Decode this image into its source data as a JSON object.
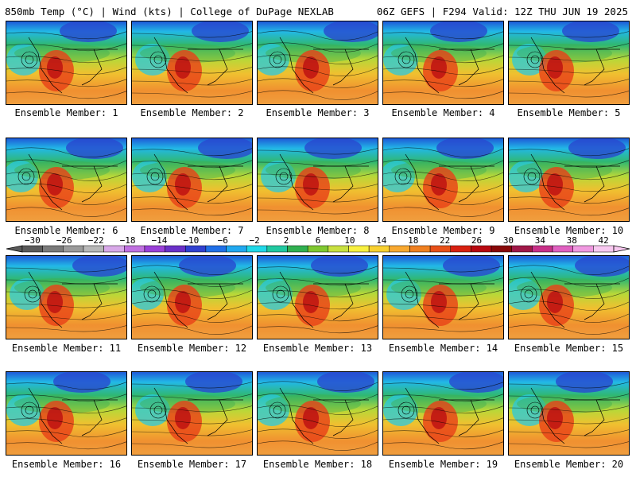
{
  "header": {
    "left": "850mb Temp (°C) | Wind (kts) | College of DuPage NEXLAB",
    "right": "06Z GEFS | F294 Valid: 12Z THU JUN 19 2025"
  },
  "member_label_prefix": "Ensemble Member: ",
  "members": [
    1,
    2,
    3,
    4,
    5,
    6,
    7,
    8,
    9,
    10,
    11,
    12,
    13,
    14,
    15,
    16,
    17,
    18,
    19,
    20
  ],
  "colorbar": {
    "tick_labels": [
      "−30",
      "−26",
      "−22",
      "−18",
      "−14",
      "−10",
      "−6",
      "−2",
      "2",
      "6",
      "10",
      "14",
      "18",
      "22",
      "26",
      "30",
      "34",
      "38",
      "42"
    ],
    "colors": [
      "#5a5a5a",
      "#7a7a7a",
      "#9a9a9a",
      "#b8b8b8",
      "#d8a8e8",
      "#c070e0",
      "#9a40d8",
      "#6a30c8",
      "#3040d0",
      "#2070e8",
      "#20a8f0",
      "#20d8e8",
      "#20c8a0",
      "#30b050",
      "#80c830",
      "#c8e040",
      "#f8f040",
      "#f8d030",
      "#f8a830",
      "#f08020",
      "#e85018",
      "#d82010",
      "#b80810",
      "#880808",
      "#a01848",
      "#c83088",
      "#e060c0",
      "#f098e0",
      "#f8c8f0"
    ]
  }
}
